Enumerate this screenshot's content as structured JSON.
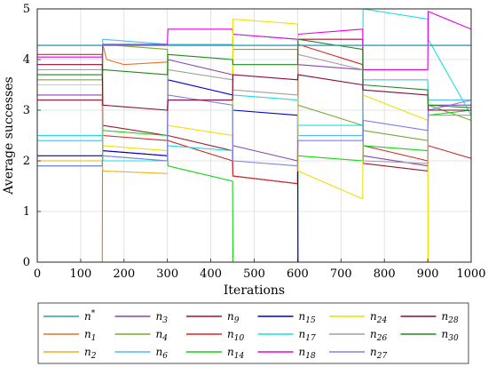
{
  "chart_data": {
    "type": "line",
    "xlabel": "Iterations",
    "ylabel": "Average successes",
    "xlim": [
      0,
      1000
    ],
    "ylim": [
      0,
      5
    ],
    "xticks": [
      "0",
      "100",
      "200",
      "300",
      "400",
      "500",
      "600",
      "700",
      "800",
      "900",
      "1000"
    ],
    "yticks": [
      "0",
      "1",
      "2",
      "3",
      "4",
      "5"
    ],
    "grid": true,
    "legend_position": "bottom",
    "reference_line": {
      "name": "n*",
      "y": 4.28,
      "color": "#2aa1b3"
    },
    "series": [
      {
        "name": "n1",
        "color": "#e8732a",
        "points": [
          [
            150,
            0
          ],
          [
            151,
            4.3
          ],
          [
            160,
            4.0
          ],
          [
            200,
            3.9
          ],
          [
            300,
            3.95
          ]
        ]
      },
      {
        "name": "n2",
        "color": "#edb120",
        "points": [
          [
            0,
            2.0
          ],
          [
            100,
            2.0
          ],
          [
            150,
            2.0
          ],
          [
            151,
            1.8
          ],
          [
            300,
            1.75
          ]
        ]
      },
      {
        "name": "n3",
        "color": "#8e44ad",
        "points": [
          [
            0,
            3.3
          ],
          [
            150,
            3.3
          ],
          [
            151,
            2.2
          ],
          [
            300,
            2.1
          ],
          [
            301,
            4.0
          ],
          [
            450,
            3.7
          ],
          [
            451,
            2.3
          ],
          [
            600,
            2.0
          ],
          [
            601,
            3.9
          ],
          [
            750,
            3.8
          ],
          [
            751,
            2.1
          ],
          [
            900,
            1.9
          ],
          [
            901,
            3.1
          ],
          [
            1000,
            3.1
          ]
        ]
      },
      {
        "name": "n4",
        "color": "#77ac30",
        "points": [
          [
            0,
            3.6
          ],
          [
            150,
            3.6
          ],
          [
            151,
            4.3
          ],
          [
            300,
            4.2
          ],
          [
            301,
            3.2
          ],
          [
            450,
            3.2
          ],
          [
            451,
            4.2
          ],
          [
            600,
            4.2
          ],
          [
            601,
            3.1
          ],
          [
            750,
            2.7
          ],
          [
            751,
            2.6
          ],
          [
            900,
            2.4
          ],
          [
            901,
            3.1
          ],
          [
            1000,
            2.8
          ]
        ]
      },
      {
        "name": "n6",
        "color": "#4dbeee",
        "points": [
          [
            0,
            2.4
          ],
          [
            150,
            2.4
          ],
          [
            151,
            4.4
          ],
          [
            300,
            4.3
          ],
          [
            301,
            4.3
          ],
          [
            450,
            4.3
          ],
          [
            451,
            4.5
          ],
          [
            600,
            4.4
          ],
          [
            601,
            2.5
          ],
          [
            750,
            2.5
          ],
          [
            751,
            3.6
          ],
          [
            900,
            3.6
          ],
          [
            901,
            3.2
          ],
          [
            1000,
            3.2
          ]
        ]
      },
      {
        "name": "n9",
        "color": "#a2142f",
        "points": [
          [
            0,
            3.2
          ],
          [
            150,
            3.2
          ],
          [
            151,
            2.7
          ],
          [
            300,
            2.5
          ],
          [
            301,
            2.5
          ],
          [
            450,
            2.2
          ],
          [
            451,
            1.7
          ],
          [
            600,
            1.55
          ],
          [
            601,
            4.4
          ],
          [
            750,
            4.4
          ],
          [
            751,
            1.95
          ],
          [
            900,
            1.8
          ],
          [
            901,
            3.0
          ],
          [
            1000,
            3.0
          ]
        ]
      },
      {
        "name": "n10",
        "color": "#d62728",
        "points": [
          [
            0,
            4.1
          ],
          [
            150,
            4.1
          ],
          [
            151,
            2.5
          ],
          [
            300,
            2.4
          ],
          [
            301,
            2.4
          ],
          [
            450,
            2.0
          ],
          [
            451,
            1.7
          ],
          [
            600,
            1.55
          ],
          [
            601,
            4.3
          ],
          [
            750,
            3.9
          ],
          [
            751,
            2.3
          ],
          [
            900,
            2.0
          ],
          [
            901,
            2.3
          ],
          [
            1000,
            2.05
          ]
        ]
      },
      {
        "name": "n14",
        "color": "#12d612",
        "points": [
          [
            0,
            1.9
          ],
          [
            150,
            1.9
          ],
          [
            151,
            2.6
          ],
          [
            300,
            2.5
          ],
          [
            301,
            1.9
          ],
          [
            450,
            1.6
          ],
          [
            451,
            0
          ],
          [
            600,
            0
          ],
          [
            601,
            2.1
          ],
          [
            750,
            2.0
          ],
          [
            751,
            2.3
          ],
          [
            900,
            2.2
          ],
          [
            901,
            2.9
          ],
          [
            1000,
            3.0
          ]
        ]
      },
      {
        "name": "n15",
        "color": "#0000cc",
        "points": [
          [
            0,
            2.1
          ],
          [
            150,
            2.1
          ],
          [
            151,
            2.2
          ],
          [
            300,
            2.1
          ],
          [
            301,
            3.6
          ],
          [
            450,
            3.3
          ],
          [
            451,
            3.0
          ],
          [
            600,
            2.9
          ],
          [
            601,
            0
          ],
          [
            750,
            0
          ],
          [
            751,
            0
          ],
          [
            900,
            0
          ],
          [
            901,
            0
          ],
          [
            1000,
            0
          ]
        ]
      },
      {
        "name": "n17",
        "color": "#18e0e0",
        "points": [
          [
            0,
            2.5
          ],
          [
            150,
            2.5
          ],
          [
            151,
            2.0
          ],
          [
            300,
            2.0
          ],
          [
            301,
            2.3
          ],
          [
            450,
            2.2
          ],
          [
            451,
            3.3
          ],
          [
            600,
            3.2
          ],
          [
            601,
            2.7
          ],
          [
            750,
            2.7
          ],
          [
            751,
            5.0
          ],
          [
            900,
            4.8
          ],
          [
            901,
            4.4
          ],
          [
            1000,
            2.9
          ]
        ]
      },
      {
        "name": "n18",
        "color": "#e600e6",
        "points": [
          [
            0,
            4.05
          ],
          [
            150,
            4.05
          ],
          [
            151,
            4.3
          ],
          [
            300,
            4.3
          ],
          [
            301,
            4.6
          ],
          [
            450,
            4.6
          ],
          [
            451,
            4.5
          ],
          [
            600,
            4.4
          ],
          [
            601,
            4.5
          ],
          [
            750,
            4.6
          ],
          [
            751,
            3.8
          ],
          [
            900,
            3.8
          ],
          [
            901,
            4.95
          ],
          [
            1000,
            4.6
          ]
        ]
      },
      {
        "name": "n24",
        "color": "#f0e000",
        "points": [
          [
            0,
            3.5
          ],
          [
            150,
            3.5
          ],
          [
            151,
            2.3
          ],
          [
            300,
            2.2
          ],
          [
            301,
            2.7
          ],
          [
            450,
            2.5
          ],
          [
            451,
            4.8
          ],
          [
            600,
            4.7
          ],
          [
            601,
            1.8
          ],
          [
            750,
            1.25
          ],
          [
            751,
            3.3
          ],
          [
            900,
            2.8
          ],
          [
            901,
            0
          ],
          [
            1000,
            0
          ]
        ]
      },
      {
        "name": "n26",
        "color": "#a0a0a0",
        "points": [
          [
            0,
            3.8
          ],
          [
            150,
            3.8
          ],
          [
            151,
            2.1
          ],
          [
            300,
            2.0
          ],
          [
            301,
            3.8
          ],
          [
            450,
            3.6
          ],
          [
            451,
            3.4
          ],
          [
            600,
            3.3
          ],
          [
            601,
            4.1
          ],
          [
            750,
            3.8
          ],
          [
            751,
            2.0
          ],
          [
            900,
            1.95
          ],
          [
            901,
            2.9
          ],
          [
            1000,
            2.9
          ]
        ]
      },
      {
        "name": "n27",
        "color": "#8080e6",
        "points": [
          [
            0,
            1.9
          ],
          [
            150,
            1.9
          ],
          [
            151,
            2.1
          ],
          [
            300,
            2.0
          ],
          [
            301,
            3.3
          ],
          [
            450,
            3.1
          ],
          [
            451,
            2.0
          ],
          [
            600,
            1.9
          ],
          [
            601,
            2.4
          ],
          [
            750,
            2.4
          ],
          [
            751,
            2.8
          ],
          [
            900,
            2.6
          ],
          [
            901,
            3.0
          ],
          [
            1000,
            3.2
          ]
        ]
      },
      {
        "name": "n28",
        "color": "#8b0a3c",
        "points": [
          [
            0,
            3.9
          ],
          [
            150,
            3.9
          ],
          [
            151,
            3.1
          ],
          [
            300,
            3.0
          ],
          [
            301,
            3.2
          ],
          [
            450,
            3.2
          ],
          [
            451,
            3.7
          ],
          [
            600,
            3.6
          ],
          [
            601,
            3.7
          ],
          [
            750,
            3.5
          ],
          [
            751,
            3.4
          ],
          [
            900,
            3.3
          ],
          [
            901,
            3.0
          ],
          [
            1000,
            3.0
          ]
        ]
      },
      {
        "name": "n30",
        "color": "#1e8a1e",
        "points": [
          [
            0,
            3.7
          ],
          [
            150,
            3.7
          ],
          [
            151,
            3.8
          ],
          [
            300,
            3.7
          ],
          [
            301,
            4.1
          ],
          [
            450,
            4.0
          ],
          [
            451,
            3.9
          ],
          [
            600,
            3.9
          ],
          [
            601,
            4.4
          ],
          [
            750,
            4.2
          ],
          [
            751,
            3.5
          ],
          [
            900,
            3.4
          ],
          [
            901,
            3.1
          ],
          [
            1000,
            3.05
          ]
        ]
      }
    ],
    "legend": [
      {
        "base": "n",
        "sub": "",
        "sup": "*",
        "color": "#2aa1b3"
      },
      {
        "base": "n",
        "sub": "3",
        "sup": "",
        "color": "#8e44ad"
      },
      {
        "base": "n",
        "sub": "9",
        "sup": "",
        "color": "#a2142f"
      },
      {
        "base": "n",
        "sub": "15",
        "sup": "",
        "color": "#0000cc"
      },
      {
        "base": "n",
        "sub": "24",
        "sup": "",
        "color": "#f0e000"
      },
      {
        "base": "n",
        "sub": "28",
        "sup": "",
        "color": "#8b0a3c"
      },
      {
        "base": "n",
        "sub": "1",
        "sup": "",
        "color": "#e8732a"
      },
      {
        "base": "n",
        "sub": "4",
        "sup": "",
        "color": "#77ac30"
      },
      {
        "base": "n",
        "sub": "10",
        "sup": "",
        "color": "#d62728"
      },
      {
        "base": "n",
        "sub": "17",
        "sup": "",
        "color": "#18e0e0"
      },
      {
        "base": "n",
        "sub": "26",
        "sup": "",
        "color": "#a0a0a0"
      },
      {
        "base": "n",
        "sub": "30",
        "sup": "",
        "color": "#1e8a1e"
      },
      {
        "base": "n",
        "sub": "2",
        "sup": "",
        "color": "#edb120"
      },
      {
        "base": "n",
        "sub": "6",
        "sup": "",
        "color": "#4dbeee"
      },
      {
        "base": "n",
        "sub": "14",
        "sup": "",
        "color": "#12d612"
      },
      {
        "base": "n",
        "sub": "18",
        "sup": "",
        "color": "#e600e6"
      },
      {
        "base": "n",
        "sub": "27",
        "sup": "",
        "color": "#8080e6"
      }
    ]
  }
}
